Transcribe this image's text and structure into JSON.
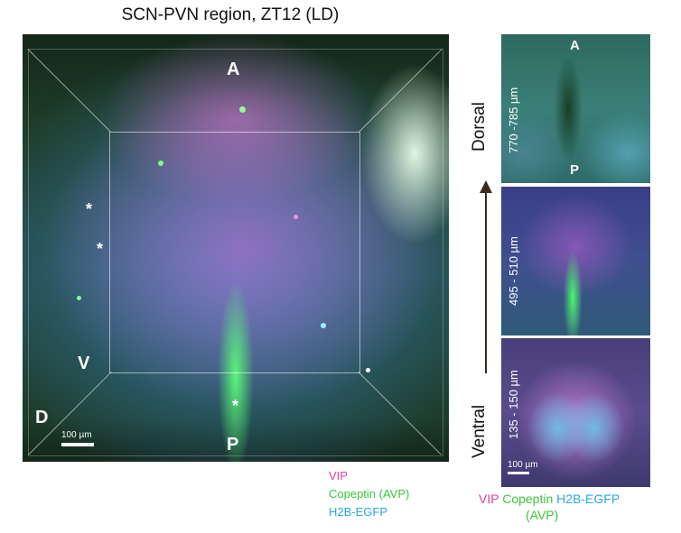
{
  "main_panel": {
    "title": "SCN-PVN region, ZT12 (LD)",
    "labels": {
      "anterior": "A",
      "posterior": "P",
      "ventral": "V",
      "dorsal": "D"
    },
    "asterisk": "*",
    "scale_bar": "100 µm"
  },
  "main_legend": {
    "vip": "VIP",
    "copeptin": "Copeptin (AVP)",
    "h2b": "H2B-EGFP"
  },
  "side_panels": {
    "panel1": {
      "depth": "770 -785 µm",
      "top_label": "A",
      "bottom_label": "P"
    },
    "panel2": {
      "depth": "495 - 510 µm"
    },
    "panel3": {
      "depth": "135 - 150 µm",
      "scale_bar": "100 µm"
    }
  },
  "axis": {
    "top": "Dorsal",
    "bottom": "Ventral"
  },
  "side_legend": {
    "vip": "VIP",
    "copeptin": "Copeptin",
    "avp": "(AVP)",
    "h2b": "H2B-EGFP"
  },
  "colors": {
    "vip": "#e83c9b",
    "copeptin": "#3cc53c",
    "h2b": "#2aa8d8"
  }
}
